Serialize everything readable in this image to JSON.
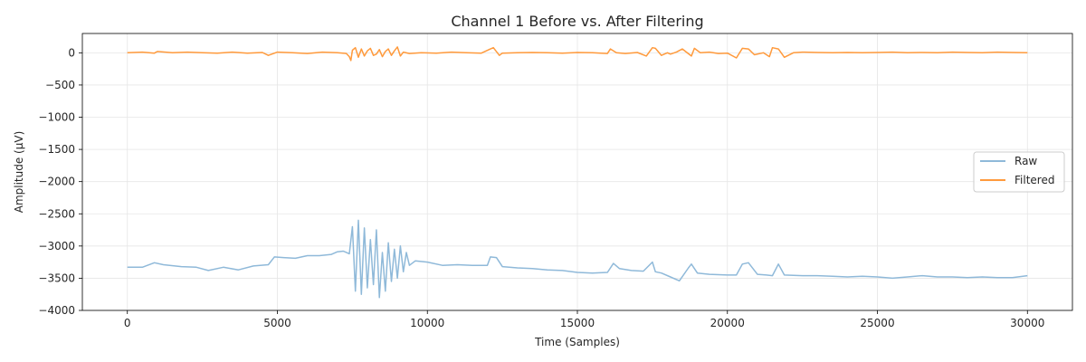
{
  "chart_data": {
    "type": "line",
    "title": "Channel 1 Before vs. After Filtering",
    "xlabel": "Time (Samples)",
    "ylabel": "Amplitude (µV)",
    "xlim": [
      -1500,
      31500
    ],
    "ylim": [
      -4000,
      300
    ],
    "xticks": [
      0,
      5000,
      10000,
      15000,
      20000,
      25000,
      30000
    ],
    "xtick_labels": [
      "0",
      "5000",
      "10000",
      "15000",
      "20000",
      "25000",
      "30000"
    ],
    "yticks": [
      0,
      -500,
      -1000,
      -1500,
      -2000,
      -2500,
      -3000,
      -3500,
      -4000
    ],
    "ytick_labels": [
      "0",
      "−500",
      "−1000",
      "−1500",
      "−2000",
      "−2500",
      "−3000",
      "−3500",
      "−4000"
    ],
    "grid": true,
    "legend_position": "center-right",
    "series": [
      {
        "name": "Raw",
        "color": "#8fb9d9",
        "x": [
          0,
          500,
          900,
          1200,
          1800,
          2300,
          2700,
          3200,
          3700,
          4200,
          4700,
          4900,
          5200,
          5600,
          6000,
          6400,
          6800,
          7000,
          7200,
          7400,
          7500,
          7600,
          7700,
          7800,
          7900,
          8000,
          8100,
          8200,
          8300,
          8400,
          8500,
          8600,
          8700,
          8800,
          8900,
          9000,
          9100,
          9200,
          9300,
          9400,
          9600,
          10000,
          10500,
          11000,
          11500,
          12000,
          12100,
          12300,
          12500,
          13000,
          13500,
          14000,
          14500,
          15000,
          15500,
          16000,
          16200,
          16400,
          16800,
          17200,
          17500,
          17600,
          17800,
          18100,
          18400,
          18700,
          18800,
          19000,
          19400,
          20000,
          20300,
          20500,
          20700,
          21000,
          21300,
          21500,
          21700,
          21900,
          22500,
          23000,
          23500,
          24000,
          24500,
          25000,
          25500,
          26000,
          26500,
          27000,
          27500,
          28000,
          28500,
          29000,
          29500,
          30000
        ],
        "y": [
          -3330,
          -3330,
          -3260,
          -3290,
          -3320,
          -3330,
          -3380,
          -3330,
          -3370,
          -3310,
          -3290,
          -3170,
          -3180,
          -3190,
          -3150,
          -3150,
          -3130,
          -3090,
          -3080,
          -3120,
          -2700,
          -3700,
          -2600,
          -3750,
          -2720,
          -3650,
          -2900,
          -3600,
          -2750,
          -3800,
          -3100,
          -3700,
          -2950,
          -3550,
          -3050,
          -3500,
          -3000,
          -3400,
          -3100,
          -3300,
          -3230,
          -3250,
          -3300,
          -3290,
          -3300,
          -3300,
          -3170,
          -3180,
          -3320,
          -3340,
          -3350,
          -3370,
          -3380,
          -3410,
          -3420,
          -3410,
          -3270,
          -3350,
          -3380,
          -3390,
          -3250,
          -3400,
          -3420,
          -3480,
          -3540,
          -3340,
          -3280,
          -3420,
          -3440,
          -3450,
          -3450,
          -3280,
          -3260,
          -3440,
          -3450,
          -3460,
          -3280,
          -3450,
          -3460,
          -3460,
          -3470,
          -3480,
          -3470,
          -3480,
          -3500,
          -3480,
          -3460,
          -3480,
          -3480,
          -3490,
          -3480,
          -3490,
          -3490,
          -3460
        ]
      },
      {
        "name": "Filtered",
        "color": "#ff9a3c",
        "x": [
          0,
          500,
          900,
          1000,
          1500,
          2000,
          2500,
          3000,
          3500,
          4000,
          4500,
          4700,
          5000,
          5500,
          6000,
          6500,
          7000,
          7300,
          7400,
          7450,
          7500,
          7600,
          7700,
          7800,
          7900,
          8000,
          8100,
          8200,
          8300,
          8400,
          8500,
          8600,
          8700,
          8800,
          8900,
          9000,
          9100,
          9200,
          9400,
          9800,
          10300,
          10800,
          11300,
          11800,
          12100,
          12200,
          12400,
          12500,
          13000,
          13500,
          14000,
          14500,
          15000,
          15500,
          16000,
          16100,
          16300,
          16600,
          17000,
          17300,
          17500,
          17600,
          17800,
          18000,
          18100,
          18300,
          18500,
          18800,
          18900,
          19100,
          19400,
          19700,
          20000,
          20300,
          20500,
          20700,
          20900,
          21200,
          21400,
          21500,
          21700,
          21900,
          22200,
          22500,
          23000,
          23500,
          24000,
          24500,
          25000,
          25500,
          26000,
          26500,
          27000,
          27500,
          28000,
          28500,
          29000,
          29500,
          30000
        ],
        "y": [
          0,
          10,
          -5,
          20,
          0,
          10,
          0,
          -5,
          10,
          -5,
          5,
          -40,
          10,
          0,
          -10,
          10,
          0,
          -10,
          -60,
          -120,
          40,
          80,
          -70,
          60,
          -50,
          30,
          70,
          -40,
          -20,
          50,
          -60,
          20,
          60,
          -40,
          30,
          90,
          -50,
          10,
          -10,
          0,
          -5,
          10,
          0,
          -5,
          60,
          80,
          -40,
          -5,
          0,
          5,
          0,
          -5,
          5,
          0,
          -10,
          60,
          0,
          -10,
          5,
          -50,
          80,
          70,
          -40,
          0,
          -20,
          10,
          60,
          -50,
          70,
          0,
          10,
          -10,
          -5,
          -80,
          70,
          60,
          -30,
          0,
          -60,
          80,
          60,
          -70,
          0,
          10,
          5,
          0,
          5,
          0,
          5,
          10,
          0,
          5,
          0,
          10,
          5,
          0,
          10,
          5,
          0
        ]
      }
    ]
  }
}
